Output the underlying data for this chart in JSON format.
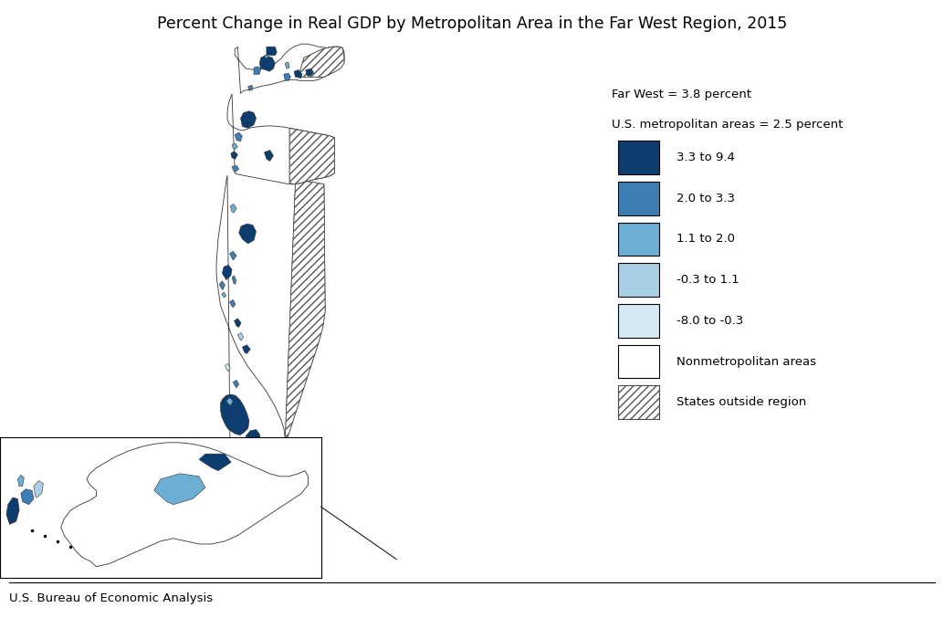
{
  "title": "Percent Change in Real GDP by Metropolitan Area in the Far West Region, 2015",
  "title_fontsize": 12.5,
  "footer_text": "U.S. Bureau of Economic Analysis",
  "legend_header1": "Far West = 3.8 percent",
  "legend_header2": "U.S. metropolitan areas = 2.5 percent",
  "legend_labels": [
    "3.3 to 9.4",
    "2.0 to 3.3",
    "1.1 to 2.0",
    "-0.3 to 1.1",
    "-8.0 to -0.3",
    "Nonmetropolitan areas",
    "States outside region"
  ],
  "c_dark": "#0d3d6e",
  "c_med": "#3d7fb5",
  "c_lt": "#6dafd4",
  "c_vlt": "#aacfe4",
  "c_pale": "#d4e8f3",
  "c_white": "#ffffff",
  "background_color": "#ffffff",
  "fig_width": 10.34,
  "fig_height": 6.77,
  "dpi": 100
}
